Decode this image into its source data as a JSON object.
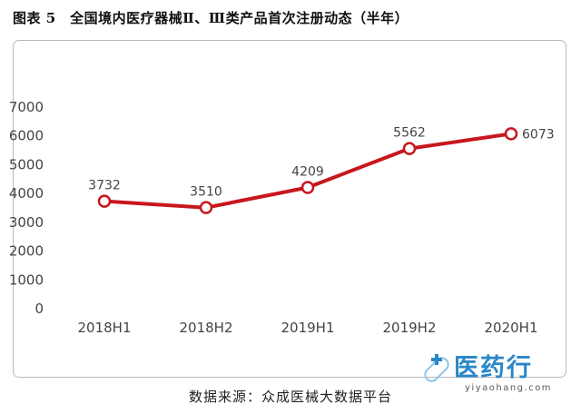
{
  "title": "图表 5　全国境内医疗器械Ⅱ、Ⅲ类产品首次注册动态（半年）",
  "source_note": "数据来源：众成医械大数据平台",
  "logo": {
    "text": "医药行",
    "url": "yiyaohang.com",
    "icon": "capsule-cross-icon"
  },
  "colors": {
    "line": "#c8161d",
    "text": "#444444",
    "brand": "#2a87c8"
  },
  "chart_data": {
    "type": "line",
    "categories": [
      "2018H1",
      "2018H2",
      "2019H1",
      "2019H2",
      "2020H1"
    ],
    "series": [
      {
        "values": [
          3732,
          3510,
          4209,
          5562,
          6073
        ]
      }
    ],
    "yticks": [
      0,
      1000,
      2000,
      3000,
      4000,
      5000,
      6000,
      7000
    ],
    "ylim": [
      0,
      7000
    ],
    "grid": false,
    "data_labels": true
  }
}
